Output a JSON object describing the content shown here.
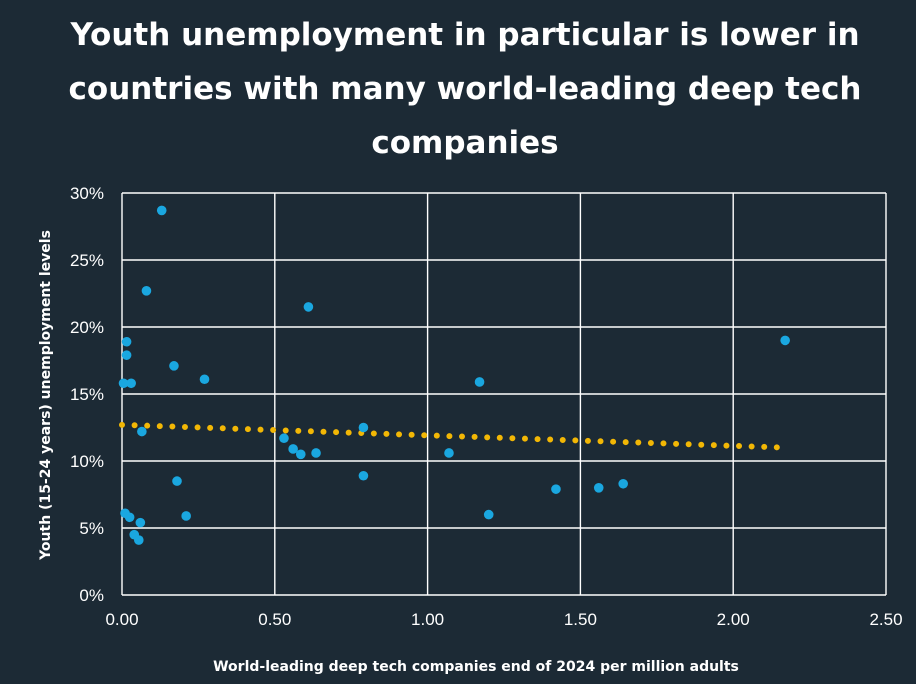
{
  "chart_data": {
    "type": "scatter",
    "title": "Youth unemployment in particular is lower in countries with many world-leading deep tech companies",
    "xlabel": "World-leading deep tech companies end of 2024 per million adults",
    "ylabel": "Youth (15-24 years) unemployment levels",
    "xlim": [
      0,
      2.5
    ],
    "ylim": [
      0,
      0.3
    ],
    "x_ticks": [
      "0.00",
      "0.50",
      "1.00",
      "1.50",
      "2.00",
      "2.50"
    ],
    "y_ticks": [
      "0%",
      "5%",
      "10%",
      "15%",
      "20%",
      "25%",
      "30%"
    ],
    "grid": true,
    "colors": {
      "points": "#1aa7e0",
      "trend": "#f2b705",
      "background": "#1c2a35",
      "grid": "#ffffff"
    },
    "series": [
      {
        "values": [
          {
            "x": 0.13,
            "y": 0.287
          },
          {
            "x": 0.08,
            "y": 0.227
          },
          {
            "x": 0.015,
            "y": 0.189
          },
          {
            "x": 0.015,
            "y": 0.179
          },
          {
            "x": 0.005,
            "y": 0.158
          },
          {
            "x": 0.03,
            "y": 0.158
          },
          {
            "x": 0.17,
            "y": 0.171
          },
          {
            "x": 0.27,
            "y": 0.161
          },
          {
            "x": 0.065,
            "y": 0.122
          },
          {
            "x": 0.01,
            "y": 0.061
          },
          {
            "x": 0.025,
            "y": 0.058
          },
          {
            "x": 0.06,
            "y": 0.054
          },
          {
            "x": 0.04,
            "y": 0.045
          },
          {
            "x": 0.055,
            "y": 0.041
          },
          {
            "x": 0.18,
            "y": 0.085
          },
          {
            "x": 0.21,
            "y": 0.059
          },
          {
            "x": 0.61,
            "y": 0.215
          },
          {
            "x": 0.53,
            "y": 0.117
          },
          {
            "x": 0.56,
            "y": 0.109
          },
          {
            "x": 0.585,
            "y": 0.105
          },
          {
            "x": 0.635,
            "y": 0.106
          },
          {
            "x": 0.79,
            "y": 0.125
          },
          {
            "x": 0.79,
            "y": 0.089
          },
          {
            "x": 1.07,
            "y": 0.106
          },
          {
            "x": 1.17,
            "y": 0.159
          },
          {
            "x": 1.2,
            "y": 0.06
          },
          {
            "x": 1.42,
            "y": 0.079
          },
          {
            "x": 1.56,
            "y": 0.08
          },
          {
            "x": 1.64,
            "y": 0.083
          },
          {
            "x": 2.17,
            "y": 0.19
          }
        ]
      }
    ],
    "trendline": {
      "type": "linear",
      "x": [
        0.0,
        2.17
      ],
      "y": [
        0.127,
        0.11
      ]
    }
  }
}
